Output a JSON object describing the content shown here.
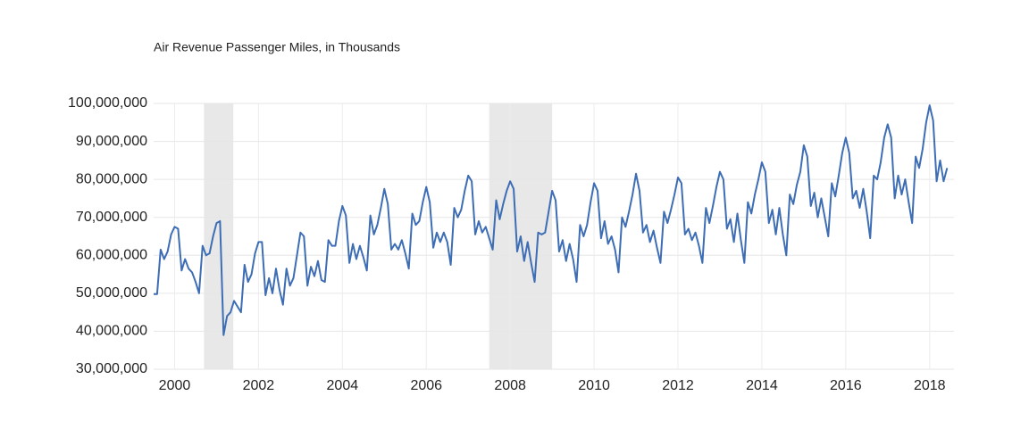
{
  "chart_data": {
    "type": "line",
    "title": "Air Revenue Passenger Miles, in Thousands",
    "x": [
      1999.5,
      1999.583,
      1999.667,
      1999.75,
      1999.833,
      1999.917,
      2000,
      2000.083,
      2000.167,
      2000.25,
      2000.333,
      2000.417,
      2000.5,
      2000.583,
      2000.667,
      2000.75,
      2000.833,
      2000.917,
      2001,
      2001.083,
      2001.167,
      2001.25,
      2001.333,
      2001.417,
      2001.5,
      2001.583,
      2001.667,
      2001.75,
      2001.833,
      2001.917,
      2002,
      2002.083,
      2002.167,
      2002.25,
      2002.333,
      2002.417,
      2002.5,
      2002.583,
      2002.667,
      2002.75,
      2002.833,
      2002.917,
      2003,
      2003.083,
      2003.167,
      2003.25,
      2003.333,
      2003.417,
      2003.5,
      2003.583,
      2003.667,
      2003.75,
      2003.833,
      2003.917,
      2004,
      2004.083,
      2004.167,
      2004.25,
      2004.333,
      2004.417,
      2004.5,
      2004.583,
      2004.667,
      2004.75,
      2004.833,
      2004.917,
      2005,
      2005.083,
      2005.167,
      2005.25,
      2005.333,
      2005.417,
      2005.5,
      2005.583,
      2005.667,
      2005.75,
      2005.833,
      2005.917,
      2006,
      2006.083,
      2006.167,
      2006.25,
      2006.333,
      2006.417,
      2006.5,
      2006.583,
      2006.667,
      2006.75,
      2006.833,
      2006.917,
      2007,
      2007.083,
      2007.167,
      2007.25,
      2007.333,
      2007.417,
      2007.5,
      2007.583,
      2007.667,
      2007.75,
      2007.833,
      2007.917,
      2008,
      2008.083,
      2008.167,
      2008.25,
      2008.333,
      2008.417,
      2008.5,
      2008.583,
      2008.667,
      2008.75,
      2008.833,
      2008.917,
      2009,
      2009.083,
      2009.167,
      2009.25,
      2009.333,
      2009.417,
      2009.5,
      2009.583,
      2009.667,
      2009.75,
      2009.833,
      2009.917,
      2010,
      2010.083,
      2010.167,
      2010.25,
      2010.333,
      2010.417,
      2010.5,
      2010.583,
      2010.667,
      2010.75,
      2010.833,
      2010.917,
      2011,
      2011.083,
      2011.167,
      2011.25,
      2011.333,
      2011.417,
      2011.5,
      2011.583,
      2011.667,
      2011.75,
      2011.833,
      2011.917,
      2012,
      2012.083,
      2012.167,
      2012.25,
      2012.333,
      2012.417,
      2012.5,
      2012.583,
      2012.667,
      2012.75,
      2012.833,
      2012.917,
      2013,
      2013.083,
      2013.167,
      2013.25,
      2013.333,
      2013.417,
      2013.5,
      2013.583,
      2013.667,
      2013.75,
      2013.833,
      2013.917,
      2014,
      2014.083,
      2014.167,
      2014.25,
      2014.333,
      2014.417,
      2014.5,
      2014.583,
      2014.667,
      2014.75,
      2014.833,
      2014.917,
      2015,
      2015.083,
      2015.167,
      2015.25,
      2015.333,
      2015.417,
      2015.5,
      2015.583,
      2015.667,
      2015.75,
      2015.833,
      2015.917,
      2016,
      2016.083,
      2016.167,
      2016.25,
      2016.333,
      2016.417,
      2016.5,
      2016.583,
      2016.667,
      2016.75,
      2016.833,
      2016.917,
      2017,
      2017.083,
      2017.167,
      2017.25,
      2017.333,
      2017.417,
      2017.5,
      2017.583,
      2017.667,
      2017.75,
      2017.833,
      2017.917,
      2018,
      2018.083,
      2018.167,
      2018.25,
      2018.333,
      2018.417
    ],
    "series": [
      {
        "color": "#3d6db4",
        "values": [
          49800000,
          49800000,
          61500000,
          59000000,
          61000000,
          65500000,
          67500000,
          67000000,
          56000000,
          59000000,
          56500000,
          55500000,
          53000000,
          50000000,
          62500000,
          60000000,
          60500000,
          65000000,
          68500000,
          69000000,
          39000000,
          44000000,
          45000000,
          48000000,
          46500000,
          45000000,
          57500000,
          53000000,
          55000000,
          60500000,
          63500000,
          63500000,
          49500000,
          54000000,
          50000000,
          56500000,
          51000000,
          47000000,
          56500000,
          52000000,
          54000000,
          60000000,
          66000000,
          65000000,
          52000000,
          57000000,
          54500000,
          58500000,
          53500000,
          53000000,
          64000000,
          62500000,
          62500000,
          69000000,
          73000000,
          70500000,
          58000000,
          63000000,
          59000000,
          62500000,
          59500000,
          56000000,
          70500000,
          65500000,
          68000000,
          72500000,
          77500000,
          73500000,
          61500000,
          63000000,
          61500000,
          64000000,
          60500000,
          56500000,
          71000000,
          68000000,
          69000000,
          74000000,
          78000000,
          74000000,
          62000000,
          66000000,
          63500000,
          66000000,
          63500000,
          57500000,
          72500000,
          70000000,
          72000000,
          77000000,
          81000000,
          79500000,
          65500000,
          69000000,
          66000000,
          67500000,
          64500000,
          61500000,
          74500000,
          69500000,
          73500000,
          77000000,
          79500000,
          77500000,
          61000000,
          65000000,
          58500000,
          63500000,
          58000000,
          53000000,
          66000000,
          65500000,
          66000000,
          71500000,
          77000000,
          74500000,
          61000000,
          64000000,
          58500000,
          63000000,
          59000000,
          53000000,
          68000000,
          65000000,
          68000000,
          74000000,
          79000000,
          77000000,
          64500000,
          69000000,
          63000000,
          65000000,
          61500000,
          55500000,
          70000000,
          67500000,
          71500000,
          76000000,
          81500000,
          77000000,
          66000000,
          68000000,
          63500000,
          66500000,
          62000000,
          58000000,
          71500000,
          68500000,
          72000000,
          76000000,
          80500000,
          79000000,
          65500000,
          67000000,
          64000000,
          66000000,
          62500000,
          58000000,
          72500000,
          68500000,
          73000000,
          78000000,
          82000000,
          80000000,
          67000000,
          69500000,
          63500000,
          71000000,
          64000000,
          58000000,
          74000000,
          71000000,
          76000000,
          80000000,
          84500000,
          82000000,
          68500000,
          72000000,
          65500000,
          72500000,
          65500000,
          60000000,
          76000000,
          73500000,
          78500000,
          82000000,
          89000000,
          86000000,
          73000000,
          76500000,
          70000000,
          75000000,
          70000000,
          65000000,
          79000000,
          75500000,
          81000000,
          87000000,
          91000000,
          87000000,
          75000000,
          77000000,
          72500000,
          77500000,
          71500000,
          64500000,
          81000000,
          80000000,
          84500000,
          91000000,
          94500000,
          91000000,
          75000000,
          81000000,
          76000000,
          80000000,
          74000000,
          68500000,
          86000000,
          83000000,
          88000000,
          95000000,
          99500000,
          95500000,
          79500000,
          85000000,
          79500000,
          83000000
        ]
      }
    ],
    "recessions": [
      [
        2000.7,
        2001.4
      ],
      [
        2007.5,
        2009.0
      ]
    ],
    "recession_color": "#e8e8e8",
    "xlim": [
      1999.5,
      2018.58
    ],
    "xticks": [
      2000,
      2002,
      2004,
      2006,
      2008,
      2010,
      2012,
      2014,
      2016,
      2018
    ],
    "ylim": [
      30000000,
      100000000
    ],
    "yticks": [
      {
        "value": 30000000,
        "label": "30,000,000"
      },
      {
        "value": 40000000,
        "label": "40,000,000"
      },
      {
        "value": 50000000,
        "label": "50,000,000"
      },
      {
        "value": 60000000,
        "label": "60,000,000"
      },
      {
        "value": 70000000,
        "label": "70,000,000"
      },
      {
        "value": 80000000,
        "label": "80,000,000"
      },
      {
        "value": 90000000,
        "label": "90,000,000"
      },
      {
        "value": 100000000,
        "label": "100,000,000"
      }
    ],
    "grid": true
  }
}
